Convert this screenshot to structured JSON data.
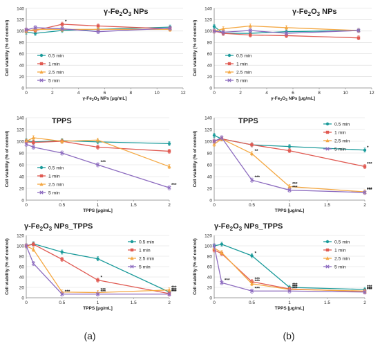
{
  "colors": {
    "s05": "#1a9a9a",
    "s1": "#e05a52",
    "s25": "#f4a741",
    "s5": "#8c6bbf",
    "axis": "#7f7f7f",
    "grid": "#d9d9d9"
  },
  "panel_labels": [
    "(a)",
    "(b)"
  ],
  "chart_data": [
    {
      "id": "a_fe2o3",
      "type": "line",
      "title": [
        "γ-Fe",
        "2",
        "O",
        "3",
        " NPs"
      ],
      "xlabel": "γ-Fe2O3 NPs [μg/mL]",
      "ylabel": "Cell viability (% of control)",
      "xlim": [
        0,
        12
      ],
      "xticks": [
        0,
        2,
        4,
        6,
        8,
        10,
        12
      ],
      "ylim": [
        0,
        140
      ],
      "yticks": [
        0,
        20,
        40,
        60,
        80,
        100,
        120,
        140
      ],
      "legend_position": "bottom-left",
      "x": [
        0,
        0.69,
        2.75,
        5.5,
        11
      ],
      "series": [
        {
          "name": "0.5 min",
          "color_key": "s05",
          "marker": "circle",
          "values": [
            98,
            96,
            101,
            103,
            107
          ]
        },
        {
          "name": "1 min",
          "color_key": "s1",
          "marker": "square",
          "values": [
            101,
            101,
            112,
            109,
            104
          ]
        },
        {
          "name": "2.5 min",
          "color_key": "s25",
          "marker": "triangle",
          "values": [
            100,
            103,
            103,
            103,
            103
          ]
        },
        {
          "name": "5 min",
          "color_key": "s5",
          "marker": "x",
          "values": [
            102,
            106,
            104,
            99,
            105
          ]
        }
      ],
      "annotations": [
        {
          "x": 2.75,
          "y": 112,
          "text": "*"
        }
      ]
    },
    {
      "id": "b_fe2o3",
      "type": "line",
      "title": [
        "γ-Fe",
        "2",
        "O",
        "3",
        " NPs"
      ],
      "xlabel": "γ-Fe2O3 NPs [μg/mL]",
      "ylabel": "Cell viability (% of control)",
      "xlim": [
        0,
        12
      ],
      "xticks": [
        0,
        2,
        4,
        6,
        8,
        10,
        12
      ],
      "ylim": [
        0,
        140
      ],
      "yticks": [
        0,
        20,
        40,
        60,
        80,
        100,
        120,
        140
      ],
      "legend_position": "bottom-left",
      "x": [
        0,
        0.69,
        2.75,
        5.5,
        11
      ],
      "series": [
        {
          "name": "0.5 min",
          "color_key": "s05",
          "marker": "circle",
          "values": [
            108,
            96,
            96,
            99,
            101
          ]
        },
        {
          "name": "1 min",
          "color_key": "s1",
          "marker": "square",
          "values": [
            100,
            96,
            93,
            92,
            88
          ]
        },
        {
          "name": "2.5 min",
          "color_key": "s25",
          "marker": "triangle",
          "values": [
            100,
            104,
            109,
            106,
            101
          ]
        },
        {
          "name": "5 min",
          "color_key": "s5",
          "marker": "x",
          "values": [
            100,
            98,
            101,
            96,
            101
          ]
        }
      ],
      "annotations": []
    },
    {
      "id": "a_tpps",
      "type": "line",
      "title": [
        "TPPS"
      ],
      "xlabel": "TPPS [μg/mL]",
      "ylabel": "Cell viability (% of control)",
      "xlim": [
        0,
        2
      ],
      "xticks": [
        0,
        0.5,
        1,
        1.5,
        2
      ],
      "ylim": [
        0,
        140
      ],
      "yticks": [
        0,
        20,
        40,
        60,
        80,
        100,
        120,
        140
      ],
      "legend_position": "bottom-left",
      "x": [
        0,
        0.1,
        0.5,
        1,
        2
      ],
      "series": [
        {
          "name": "0.5 min",
          "color_key": "s05",
          "marker": "circle",
          "values": [
            101,
            99,
            101,
            99,
            96
          ]
        },
        {
          "name": "1 min",
          "color_key": "s1",
          "marker": "square",
          "values": [
            99,
            98,
            100,
            90,
            83
          ]
        },
        {
          "name": "2.5 min",
          "color_key": "s25",
          "marker": "triangle",
          "values": [
            100,
            106,
            100,
            102,
            57
          ]
        },
        {
          "name": "5 min",
          "color_key": "s5",
          "marker": "x",
          "values": [
            95,
            90,
            80,
            60,
            21
          ]
        }
      ],
      "annotations": [
        {
          "x": 1,
          "y": 60,
          "text": "***"
        },
        {
          "x": 2,
          "y": 21,
          "text": "***"
        }
      ]
    },
    {
      "id": "b_tpps",
      "type": "line",
      "title": [
        "TPPS"
      ],
      "xlabel": "TPPS [μg/mL]",
      "ylabel": "Cell viability (% of control)",
      "xlim": [
        0,
        2
      ],
      "xticks": [
        0,
        0.5,
        1,
        1.5,
        2
      ],
      "ylim": [
        0,
        140
      ],
      "yticks": [
        0,
        20,
        40,
        60,
        80,
        100,
        120,
        140
      ],
      "legend_position": "top-right",
      "x": [
        0,
        0.1,
        0.5,
        1,
        2
      ],
      "series": [
        {
          "name": "0.5 min",
          "color_key": "s05",
          "marker": "circle",
          "values": [
            110,
            104,
            94,
            91,
            85
          ]
        },
        {
          "name": "1 min",
          "color_key": "s1",
          "marker": "square",
          "values": [
            100,
            104,
            94,
            84,
            57
          ]
        },
        {
          "name": "2.5 min",
          "color_key": "s25",
          "marker": "triangle",
          "values": [
            95,
            104,
            79,
            23,
            14
          ]
        },
        {
          "name": "5 min",
          "color_key": "s5",
          "marker": "x",
          "values": [
            100,
            106,
            34,
            17,
            13
          ]
        }
      ],
      "annotations": [
        {
          "x": 2,
          "y": 85,
          "text": "*"
        },
        {
          "x": 2,
          "y": 57,
          "text": "***"
        },
        {
          "x": 0.5,
          "y": 79,
          "text": "**"
        },
        {
          "x": 0.5,
          "y": 34,
          "text": "***"
        },
        {
          "x": 1,
          "y": 23,
          "text": "***"
        },
        {
          "x": 1,
          "y": 17,
          "text": "***"
        },
        {
          "x": 2,
          "y": 14,
          "text": "***"
        },
        {
          "x": 2,
          "y": 13,
          "text": "***"
        }
      ]
    },
    {
      "id": "a_combo",
      "type": "line",
      "title": [
        "γ-Fe",
        "2",
        "O",
        "3",
        " NPs_TPPS"
      ],
      "xlabel": "TPPS [μg/mL]",
      "ylabel": "Cell viability (% of control)",
      "xlim": [
        0,
        2
      ],
      "xticks": [
        0,
        0.5,
        1,
        1.5,
        2
      ],
      "ylim": [
        0,
        120
      ],
      "yticks": [
        0,
        20,
        40,
        60,
        80,
        100,
        120
      ],
      "legend_position": "top-right",
      "x": [
        0,
        0.1,
        0.5,
        1,
        2
      ],
      "series": [
        {
          "name": "0.5 min",
          "color_key": "s05",
          "marker": "circle",
          "values": [
            100,
            104,
            88,
            75,
            11
          ]
        },
        {
          "name": "1 min",
          "color_key": "s1",
          "marker": "square",
          "values": [
            100,
            103,
            74,
            34,
            8
          ]
        },
        {
          "name": "2.5 min",
          "color_key": "s25",
          "marker": "triangle",
          "values": [
            100,
            93,
            11,
            10,
            15
          ]
        },
        {
          "name": "5 min",
          "color_key": "s5",
          "marker": "x",
          "values": [
            100,
            66,
            7,
            7,
            7
          ]
        }
      ],
      "annotations": [
        {
          "x": 1,
          "y": 34,
          "text": "*"
        },
        {
          "x": 0.5,
          "y": 7,
          "text": "***"
        },
        {
          "x": 1,
          "y": 10,
          "text": "***"
        },
        {
          "x": 1,
          "y": 7,
          "text": "***"
        },
        {
          "x": 2,
          "y": 15,
          "text": "***"
        },
        {
          "x": 2,
          "y": 11,
          "text": "***"
        },
        {
          "x": 2,
          "y": 8,
          "text": "***"
        },
        {
          "x": 2,
          "y": 7,
          "text": "***"
        }
      ]
    },
    {
      "id": "b_combo",
      "type": "line",
      "title": [
        "γ-Fe",
        "2",
        "O",
        "3",
        " NPs_TPPS"
      ],
      "xlabel": "TPPS [μg/mL]",
      "ylabel": "Cell viability (% of control)",
      "xlim": [
        0,
        2
      ],
      "xticks": [
        0,
        0.5,
        1,
        1.5,
        2
      ],
      "ylim": [
        0,
        120
      ],
      "yticks": [
        0,
        20,
        40,
        60,
        80,
        100,
        120
      ],
      "legend_position": "top-right",
      "x": [
        0,
        0.1,
        0.5,
        1,
        2
      ],
      "series": [
        {
          "name": "0.5 min",
          "color_key": "s05",
          "marker": "circle",
          "values": [
            100,
            103,
            81,
            20,
            16
          ]
        },
        {
          "name": "1 min",
          "color_key": "s1",
          "marker": "square",
          "values": [
            92,
            85,
            31,
            17,
            12
          ]
        },
        {
          "name": "2.5 min",
          "color_key": "s25",
          "marker": "triangle",
          "values": [
            96,
            87,
            27,
            16,
            13
          ]
        },
        {
          "name": "5 min",
          "color_key": "s5",
          "marker": "x",
          "values": [
            100,
            29,
            13,
            13,
            11
          ]
        }
      ],
      "annotations": [
        {
          "x": 0.5,
          "y": 81,
          "text": "*"
        },
        {
          "x": 0.1,
          "y": 29,
          "text": "***"
        },
        {
          "x": 0.5,
          "y": 31,
          "text": "***"
        },
        {
          "x": 0.5,
          "y": 27,
          "text": "***"
        },
        {
          "x": 0.5,
          "y": 13,
          "text": "***"
        },
        {
          "x": 1,
          "y": 20,
          "text": "***"
        },
        {
          "x": 1,
          "y": 17,
          "text": "***"
        },
        {
          "x": 1,
          "y": 16,
          "text": "***"
        },
        {
          "x": 1,
          "y": 13,
          "text": "***"
        },
        {
          "x": 2,
          "y": 16,
          "text": "***"
        },
        {
          "x": 2,
          "y": 12,
          "text": "***"
        },
        {
          "x": 2,
          "y": 13,
          "text": "***"
        },
        {
          "x": 2,
          "y": 11,
          "text": "***"
        }
      ]
    }
  ]
}
